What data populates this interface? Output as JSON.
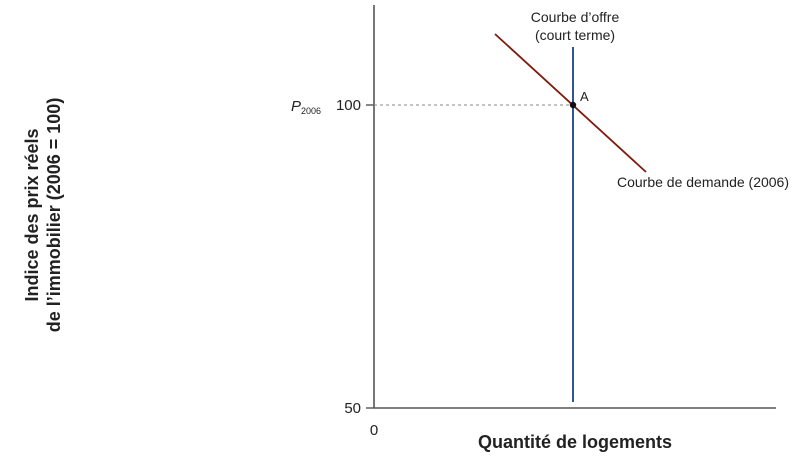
{
  "axes": {
    "y_title_line1": "Indice des prix réels",
    "y_title_line2": "de l’immobilier (2006 = 100)",
    "x_title": "Quantité de logements",
    "origin_label": "0",
    "y_tick_50": "50",
    "y_tick_100": "100"
  },
  "labels": {
    "p_label_main": "P",
    "p_label_sub": "2006",
    "point_a": "A",
    "supply_line1": "Courbe d’offre",
    "supply_line2": "(court terme)",
    "demand": "Courbe de demande (2006)"
  },
  "colors": {
    "axis": "#555555",
    "supply": "#2f5597",
    "demand": "#7b1c0e",
    "guide": "#888888",
    "point": "#111111"
  }
}
